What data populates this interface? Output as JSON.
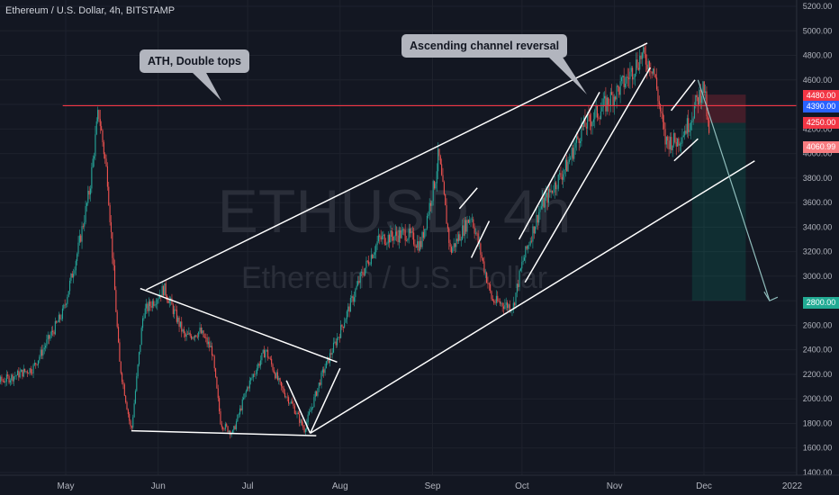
{
  "header": {
    "title": "Ethereum / U.S. Dollar, 4h, BITSTAMP"
  },
  "watermark": {
    "symbol": "ETHUSD, 4h",
    "name": "Ethereum / U.S. Dollar"
  },
  "annotations": {
    "ath": "ATH, Double tops",
    "channel": "Ascending channel reversal"
  },
  "price_badges": {
    "stop": "4480.00",
    "ath_level": "4390.00",
    "entry": "4250.00",
    "last": "4060.99",
    "target": "2800.00"
  },
  "colors": {
    "up": "#26a69a",
    "down": "#ef5350",
    "bg": "#131722",
    "ath_line": "#f23645",
    "ath_badge": "#2962ff",
    "target_badge": "#22ab94"
  },
  "chart_data": {
    "type": "candlestick",
    "symbol": "ETHUSD",
    "interval": "4h",
    "exchange": "BITSTAMP",
    "ylim": [
      1400,
      5200
    ],
    "y_ticks": [
      "5200.00",
      "5000.00",
      "4800.00",
      "4600.00",
      "4400.00",
      "4200.00",
      "4000.00",
      "3800.00",
      "3600.00",
      "3400.00",
      "3200.00",
      "3000.00",
      "2800.00",
      "2600.00",
      "2400.00",
      "2200.00",
      "2000.00",
      "1800.00",
      "1600.00",
      "1400.00"
    ],
    "x_ticks": [
      "May",
      "Jun",
      "Jul",
      "Aug",
      "Sep",
      "Oct",
      "Nov",
      "Dec",
      "2022"
    ],
    "close_path": [
      [
        "Apr 1",
        2100
      ],
      [
        "Apr 10",
        2150
      ],
      [
        "Apr 20",
        2250
      ],
      [
        "Apr 30",
        2700
      ],
      [
        "May 5",
        3200
      ],
      [
        "May 9",
        3700
      ],
      [
        "May 12",
        4350
      ],
      [
        "May 15",
        3800
      ],
      [
        "May 19",
        2300
      ],
      [
        "May 23",
        1730
      ],
      [
        "May 27",
        2700
      ],
      [
        "Jun 3",
        2900
      ],
      [
        "Jun 10",
        2500
      ],
      [
        "Jun 15",
        2550
      ],
      [
        "Jun 19",
        2400
      ],
      [
        "Jun 22",
        1800
      ],
      [
        "Jun 26",
        1720
      ],
      [
        "Jul 1",
        2100
      ],
      [
        "Jul 7",
        2400
      ],
      [
        "Jul 12",
        2100
      ],
      [
        "Jul 16",
        1950
      ],
      [
        "Jul 20",
        1750
      ],
      [
        "Jul 26",
        2200
      ],
      [
        "Aug 1",
        2550
      ],
      [
        "Aug 8",
        3000
      ],
      [
        "Aug 14",
        3300
      ],
      [
        "Aug 23",
        3350
      ],
      [
        "Aug 28",
        3250
      ],
      [
        "Sep 2",
        3800
      ],
      [
        "Sep 3",
        4000
      ],
      [
        "Sep 7",
        3200
      ],
      [
        "Sep 14",
        3500
      ],
      [
        "Sep 21",
        2800
      ],
      [
        "Sep 28",
        2750
      ],
      [
        "Oct 1",
        3100
      ],
      [
        "Oct 7",
        3550
      ],
      [
        "Oct 16",
        3900
      ],
      [
        "Oct 21",
        4200
      ],
      [
        "Oct 29",
        4400
      ],
      [
        "Nov 5",
        4600
      ],
      [
        "Nov 10",
        4800
      ],
      [
        "Nov 14",
        4700
      ],
      [
        "Nov 18",
        4100
      ],
      [
        "Nov 22",
        4100
      ],
      [
        "Nov 26",
        4250
      ],
      [
        "Nov 29",
        4450
      ],
      [
        "Dec 1",
        4550
      ],
      [
        "Dec 2",
        4300
      ],
      [
        "Dec 3",
        4060.99
      ]
    ],
    "levels": {
      "ath_resistance": 4390.0,
      "stop": 4480.0,
      "entry": 4250.0,
      "target": 2800.0,
      "last": 4060.99
    }
  }
}
